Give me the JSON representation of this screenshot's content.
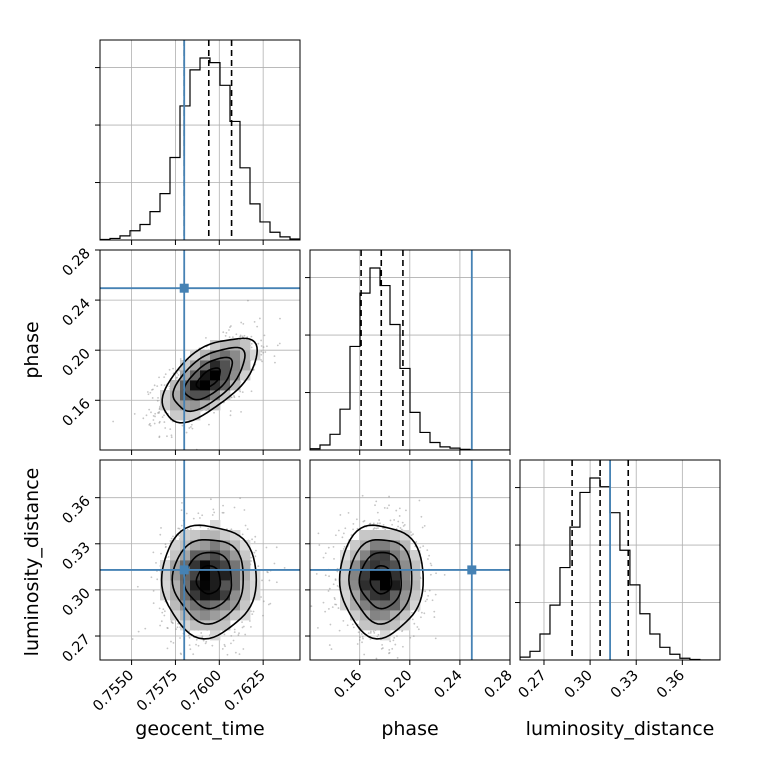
{
  "chart_data": {
    "type": "corner",
    "parameters": [
      "geocent_time",
      "phase",
      "luminosity_distance"
    ],
    "axis_labels": {
      "geocent_time": "geocent_time",
      "phase": "phase",
      "luminosity_distance": "luminosity_distance"
    },
    "ranges": {
      "geocent_time": [
        0.7532,
        0.7646
      ],
      "phase": [
        0.1203,
        0.28
      ],
      "luminosity_distance": [
        0.2544,
        0.3845
      ]
    },
    "ticks": {
      "geocent_time": [
        {
          "value": 0.755,
          "label": "0.7550"
        },
        {
          "value": 0.7575,
          "label": "0.7575"
        },
        {
          "value": 0.76,
          "label": "0.7600"
        },
        {
          "value": 0.7625,
          "label": "0.7625"
        }
      ],
      "phase": [
        {
          "value": 0.16,
          "label": "0.16"
        },
        {
          "value": 0.2,
          "label": "0.20"
        },
        {
          "value": 0.24,
          "label": "0.24"
        },
        {
          "value": 0.28,
          "label": "0.28"
        }
      ],
      "luminosity_distance": [
        {
          "value": 0.27,
          "label": "0.27"
        },
        {
          "value": 0.3,
          "label": "0.30"
        },
        {
          "value": 0.33,
          "label": "0.33"
        },
        {
          "value": 0.36,
          "label": "0.36"
        }
      ]
    },
    "truths": {
      "geocent_time": 0.758,
      "phase": 0.2495,
      "luminosity_distance": 0.313
    },
    "quantiles": {
      "geocent_time": [
        0.758,
        0.7594,
        0.7607
      ],
      "phase": [
        0.1611,
        0.1772,
        0.1945
      ],
      "luminosity_distance": [
        0.2883,
        0.3065,
        0.3248
      ]
    },
    "histograms": {
      "geocent_time": {
        "bin_edges": [
          0.7532,
          0.75377,
          0.75434,
          0.75491,
          0.75548,
          0.75605,
          0.75662,
          0.75719,
          0.75776,
          0.75833,
          0.7589,
          0.75947,
          0.76004,
          0.76061,
          0.76118,
          0.76175,
          0.76232,
          0.76289,
          0.76346,
          0.76403,
          0.7646
        ],
        "counts": [
          1,
          3,
          8,
          18,
          30,
          55,
          90,
          160,
          260,
          330,
          353,
          344,
          300,
          230,
          140,
          70,
          35,
          15,
          6,
          2
        ]
      },
      "phase": {
        "bin_edges": [
          0.1203,
          0.12829,
          0.13627,
          0.14426,
          0.15224,
          0.16023,
          0.16821,
          0.1762,
          0.18418,
          0.19217,
          0.20015,
          0.20814,
          0.21612,
          0.22411,
          0.23209,
          0.24008,
          0.24806,
          0.25605,
          0.26403,
          0.27202,
          0.28
        ],
        "counts": [
          2,
          8,
          25,
          65,
          165,
          250,
          290,
          262,
          200,
          130,
          60,
          28,
          12,
          5,
          3,
          1,
          0,
          0,
          0,
          0
        ]
      },
      "luminosity_distance": {
        "bin_edges": [
          0.2544,
          0.2609,
          0.2674,
          0.2739,
          0.2804,
          0.2869,
          0.2934,
          0.2999,
          0.3064,
          0.3129,
          0.3194,
          0.3259,
          0.3324,
          0.3389,
          0.3454,
          0.3519,
          0.3584,
          0.3649,
          0.3714,
          0.3779,
          0.3845
        ],
        "counts": [
          5,
          15,
          45,
          95,
          160,
          230,
          290,
          315,
          300,
          255,
          190,
          130,
          80,
          45,
          22,
          10,
          3,
          1,
          0,
          0
        ]
      }
    },
    "correlations": {
      "phase|geocent_time": 0.6,
      "luminosity_distance|geocent_time": 0.0,
      "luminosity_distance|phase": 0.0
    },
    "grid": true,
    "colors": {
      "truth": "#4682b4",
      "histogram": "#000000",
      "quantile": "#000000",
      "density": "#000000",
      "grid": "#b0b0b0"
    }
  }
}
